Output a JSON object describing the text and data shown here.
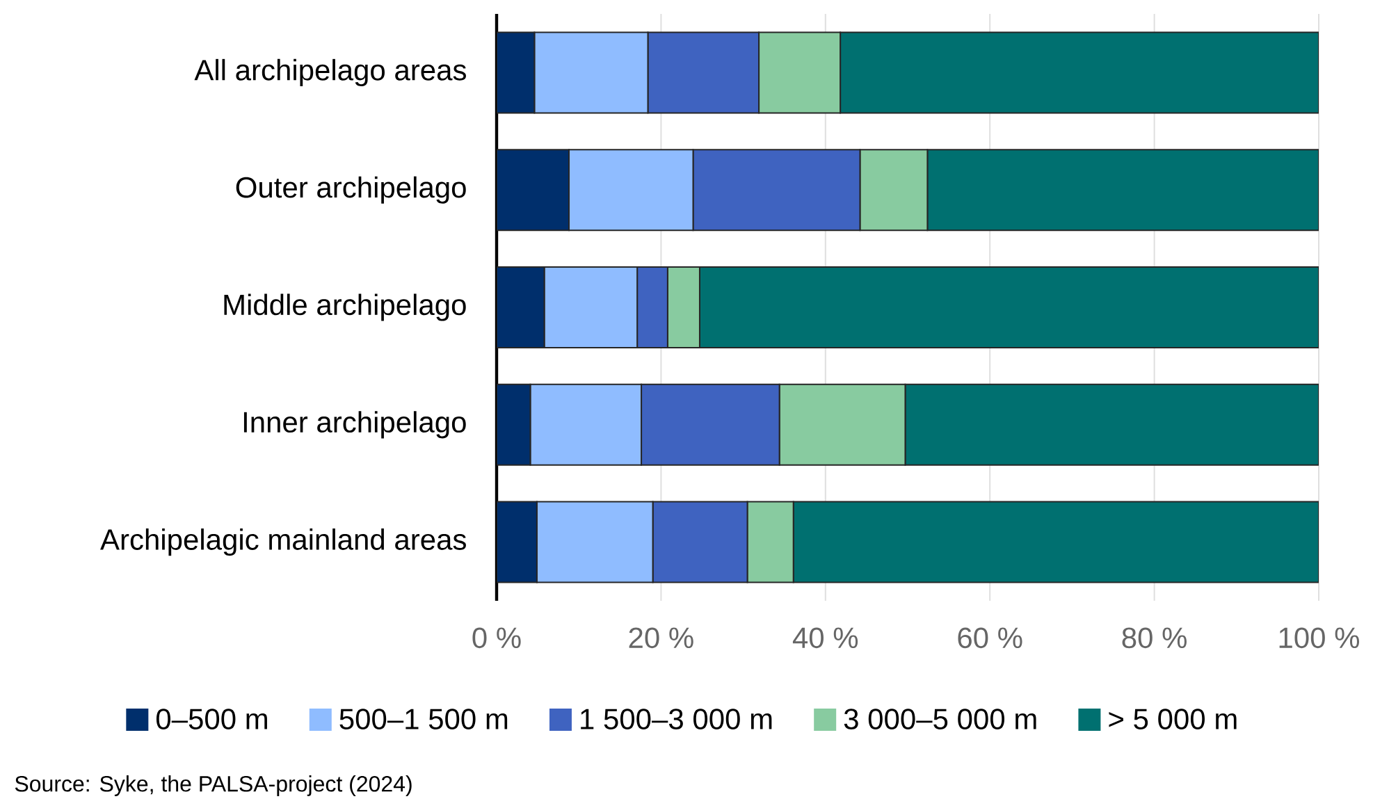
{
  "chart_data": {
    "type": "bar",
    "orientation": "horizontal",
    "stacked": true,
    "categories": [
      "All archipelago areas",
      "Outer archipelago",
      "Middle archipelago",
      "Inner archipelago",
      "Archipelagic mainland areas"
    ],
    "series": [
      {
        "name": "0–500 m",
        "color": "#002f6c",
        "values": [
          4.6,
          8.8,
          5.8,
          4.1,
          4.9
        ]
      },
      {
        "name": "500–1 500 m",
        "color": "#8fbcff",
        "values": [
          13.8,
          15.1,
          11.3,
          13.5,
          14.1
        ]
      },
      {
        "name": "1 500–3 000 m",
        "color": "#3f63c0",
        "values": [
          13.5,
          20.3,
          3.7,
          16.8,
          11.5
        ]
      },
      {
        "name": "3 000–5 000 m",
        "color": "#88cba0",
        "values": [
          9.9,
          8.2,
          3.9,
          15.3,
          5.6
        ]
      },
      {
        "name": "> 5 000 m",
        "color": "#007070",
        "values": [
          58.2,
          47.6,
          75.3,
          50.3,
          63.9
        ]
      }
    ],
    "xlim": [
      0,
      100
    ],
    "xticks": [
      {
        "value": 0,
        "label": "0 %"
      },
      {
        "value": 20,
        "label": "20 %"
      },
      {
        "value": 40,
        "label": "40 %"
      },
      {
        "value": 60,
        "label": "60 %"
      },
      {
        "value": 80,
        "label": "80 %"
      },
      {
        "value": 100,
        "label": "100 %"
      }
    ],
    "grid": "x",
    "legend": "bottom",
    "annotations": [
      "Source: Syke, the PALSA-project (2024)"
    ]
  }
}
